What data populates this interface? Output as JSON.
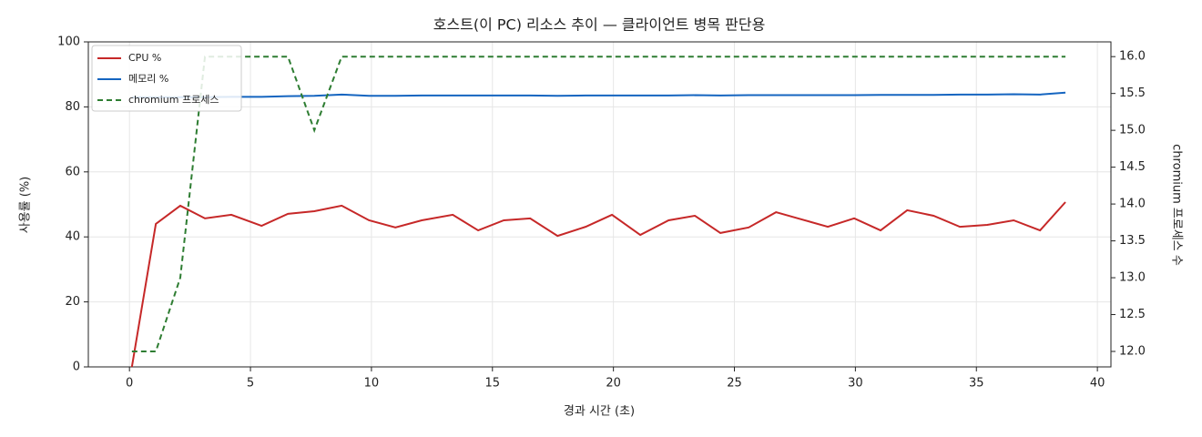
{
  "chart_data": {
    "type": "line",
    "title": "호스트(이 PC) 리소스 추이 — 클라이언트 병목 판단용",
    "x_label": "경과 시간 (초)",
    "y_label": "사용률 (%)",
    "y2_label": "chromium 프로세스 수",
    "x": [
      0.1,
      1.09,
      2.1,
      3.12,
      4.21,
      5.46,
      6.55,
      7.64,
      8.77,
      9.9,
      10.99,
      12.08,
      13.36,
      14.41,
      15.47,
      16.56,
      17.69,
      18.85,
      19.94,
      21.11,
      22.28,
      23.37,
      24.42,
      25.59,
      26.72,
      27.77,
      28.86,
      29.95,
      31.04,
      32.14,
      33.23,
      34.32,
      35.45,
      36.54,
      37.63,
      38.68
    ],
    "series": [
      {
        "name": "CPU %",
        "color": "#c62828",
        "linestyle": "solid",
        "values": [
          0,
          44,
          49.6,
          45.7,
          46.8,
          43.4,
          47.1,
          47.9,
          49.6,
          45.1,
          42.9,
          45.1,
          46.8,
          42,
          45.1,
          45.7,
          40.3,
          43.1,
          46.8,
          40.6,
          45.1,
          46.5,
          41.2,
          42.9,
          47.6,
          45.4,
          43.1,
          45.7,
          42,
          48.2,
          46.5,
          43.1,
          43.7,
          45.1,
          42,
          50.7
        ]
      },
      {
        "name": "메모리 %",
        "color": "#1565c0",
        "linestyle": "solid",
        "values": [
          83,
          83,
          83,
          83,
          83.1,
          83.1,
          83.3,
          83.4,
          83.8,
          83.4,
          83.4,
          83.5,
          83.5,
          83.5,
          83.5,
          83.5,
          83.4,
          83.5,
          83.5,
          83.5,
          83.5,
          83.6,
          83.5,
          83.6,
          83.6,
          83.6,
          83.6,
          83.6,
          83.7,
          83.7,
          83.7,
          83.8,
          83.8,
          83.9,
          83.8,
          84.4
        ]
      },
      {
        "name": "chromium 프로세스",
        "color": "#2e7d32",
        "linestyle": "dashed",
        "axis": "y2",
        "values": [
          12,
          12,
          13,
          16,
          16,
          16,
          16,
          15,
          16,
          16,
          16,
          16,
          16,
          16,
          16,
          16,
          16,
          16,
          16,
          16,
          16,
          16,
          16,
          16,
          16,
          16,
          16,
          16,
          16,
          16,
          16,
          16,
          16,
          16,
          16,
          16
        ]
      }
    ],
    "xlim": [
      -1.7,
      40.56
    ],
    "xticks": [
      0,
      5,
      10,
      15,
      20,
      25,
      30,
      35,
      40
    ],
    "ylim": [
      0,
      100
    ],
    "yticks": [
      0,
      20,
      40,
      60,
      80,
      100
    ],
    "y2lim": [
      11.79,
      16.2
    ],
    "y2ticks": [
      {
        "value": 12,
        "label": "12.0"
      },
      {
        "value": 12.5,
        "label": "12.5"
      },
      {
        "value": 13,
        "label": "13.0"
      },
      {
        "value": 13.5,
        "label": "13.5"
      },
      {
        "value": 14,
        "label": "14.0"
      },
      {
        "value": 14.5,
        "label": "14.5"
      },
      {
        "value": 15,
        "label": "15.0"
      },
      {
        "value": 15.5,
        "label": "15.5"
      },
      {
        "value": 16,
        "label": "16.0"
      }
    ],
    "grid": true,
    "legend": "upper left"
  }
}
